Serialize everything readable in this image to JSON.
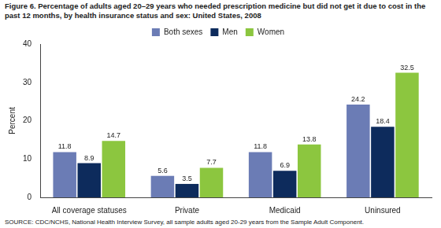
{
  "chart_data": {
    "type": "bar",
    "title": "Figure 6. Percentage of adults aged 20–29 years who needed prescription medicine but did not get it due to cost in the past 12 months, by health insurance status and sex: United States, 2008",
    "y_label": "Percent",
    "source": "SOURCE: CDC/NCHS, National Health Interview Survey, all sample adults aged 20-29 years from the Sample Adult Component.",
    "categories": [
      "All coverage statuses",
      "Private",
      "Medicaid",
      "Uninsured"
    ],
    "series": [
      {
        "name": "Both sexes",
        "color": "#6b7cb5",
        "values": [
          11.8,
          5.6,
          11.8,
          24.2
        ]
      },
      {
        "name": "Men",
        "color": "#0d2b5c",
        "values": [
          8.9,
          3.5,
          6.9,
          18.4
        ]
      },
      {
        "name": "Women",
        "color": "#8cc63f",
        "values": [
          14.7,
          7.7,
          13.8,
          32.5
        ]
      }
    ],
    "ylim": [
      0,
      40
    ],
    "yticks": [
      0,
      10,
      20,
      30,
      40
    ],
    "grid": false,
    "legend": "top",
    "data_labels": true
  }
}
